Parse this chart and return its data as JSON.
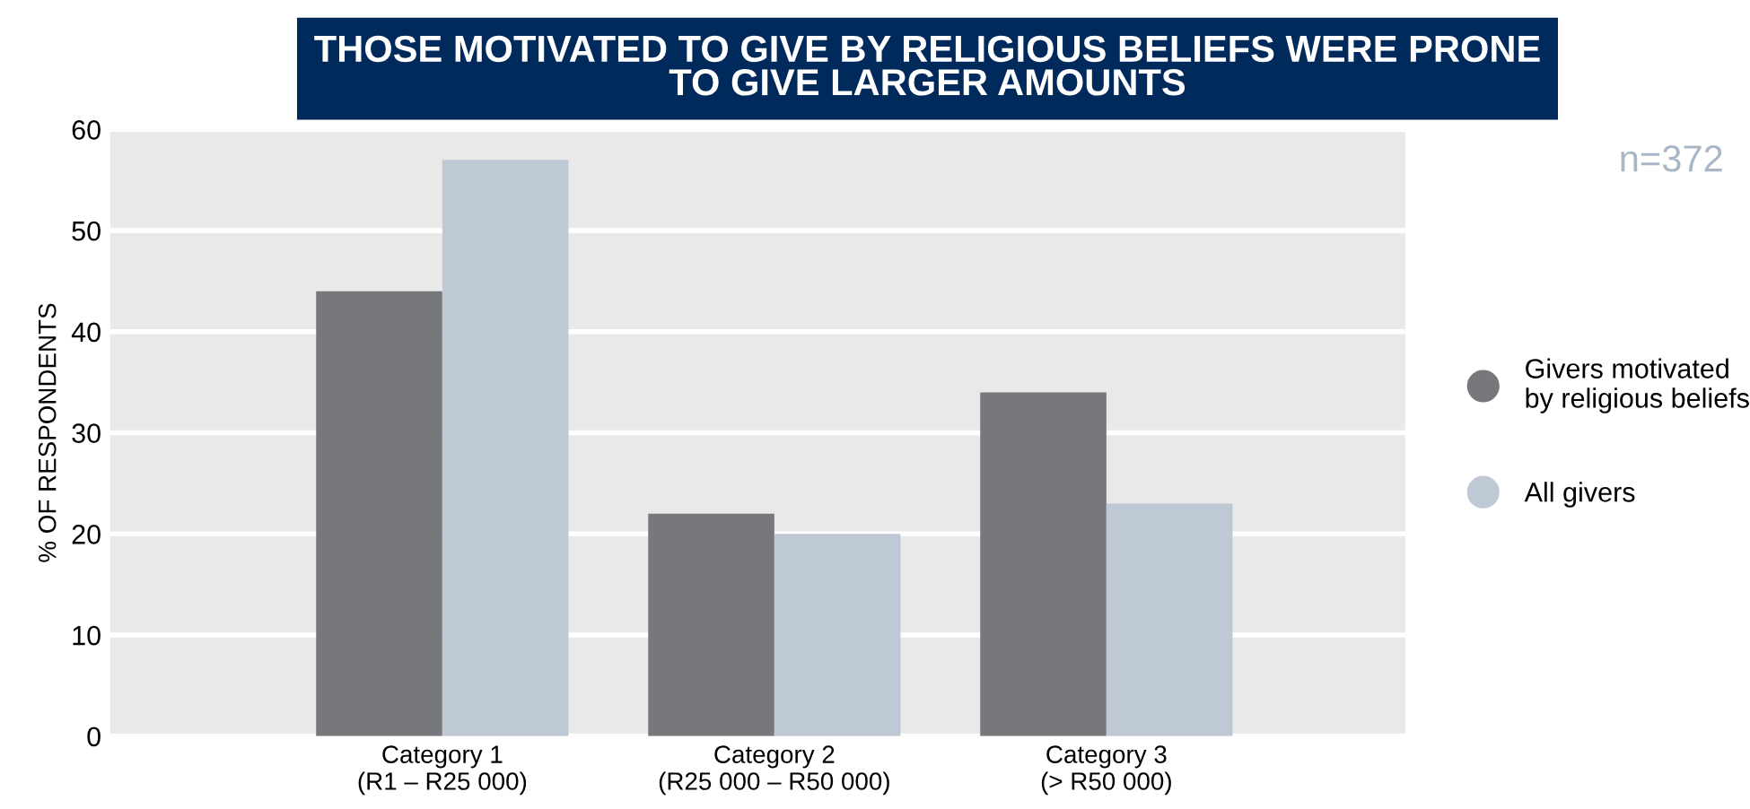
{
  "chart_data": {
    "type": "bar",
    "title": "THOSE MOTIVATED TO GIVE BY RELIGIOUS BELIEFS WERE PRONE\nTO GIVE LARGER AMOUNTS",
    "ylabel": "% OF RESPONDENTS",
    "annotations": [
      "n=372"
    ],
    "categories": [
      "Category 1\n(R1 – R25 000)",
      "Category 2\n(R25 000 – R50 000)",
      "Category 3\n(> R50 000)"
    ],
    "series": [
      {
        "name": "Givers motivated\nby religious beliefs",
        "color": "#77787c",
        "values": [
          44,
          22,
          34
        ]
      },
      {
        "name": "All givers",
        "color": "#bfc9d5",
        "values": [
          57,
          20,
          23
        ]
      }
    ],
    "ylim": [
      0,
      60
    ],
    "yticks": [
      0,
      10,
      20,
      30,
      40,
      50,
      60
    ],
    "grid": "y",
    "legend": "right"
  }
}
